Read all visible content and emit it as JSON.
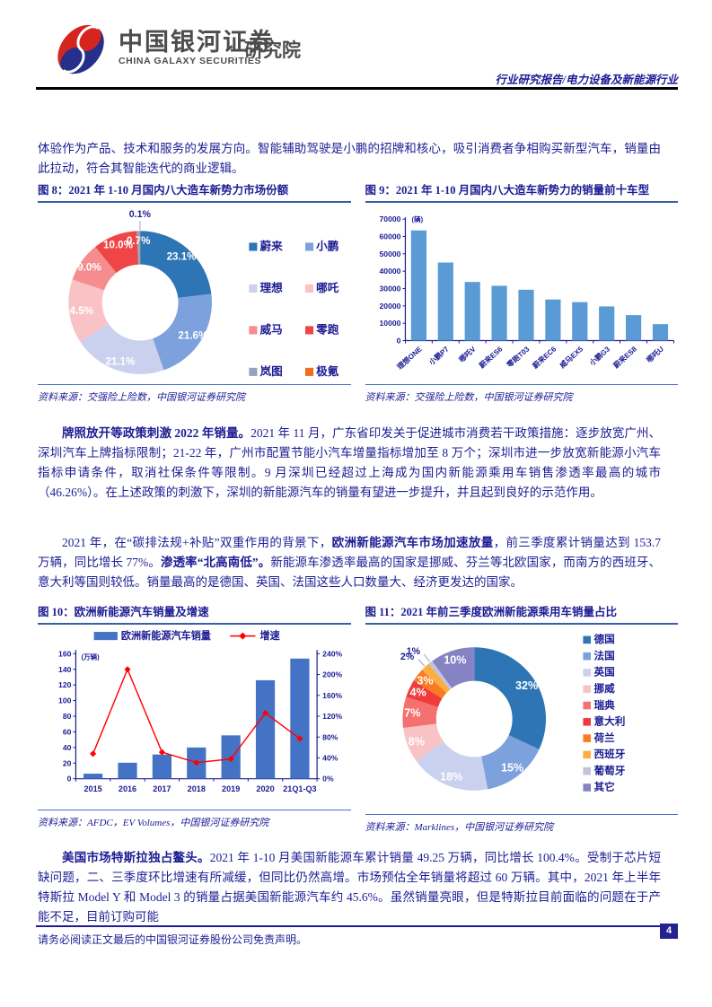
{
  "theme": {
    "navy_text": "#1c1c94",
    "title_underline": "#3b5ea8",
    "source_line": "#4472c4",
    "logo_red": "#d6251d",
    "logo_blue": "#25308c"
  },
  "header": {
    "brand_cn": "中国银河证券",
    "brand_en": "CHINA GALAXY SECURITIES",
    "brand_suffix": "研究院",
    "report_type": "行业研究报告/电力设备及新能源行业"
  },
  "intro_paragraph": "体验作为产品、技术和服务的发展方向。智能辅助驾驶是小鹏的招牌和核心，吸引消费者争相购买新型汽车，销量由此拉动，符合其智能迭代的商业逻辑。",
  "paragraphs": {
    "p2": {
      "segments": [
        {
          "text": "牌照放开等政策刺激 2022 年销量。",
          "bold": true
        },
        {
          "text": "2021 年 11 月，广东省印发关于促进城市消费若干政策措施：逐步放宽广州、深圳汽车上牌指标限制；21-22 年，广州市配置节能小汽车增量指标增加至 8 万个；深圳市进一步放宽新能源小汽车指标申请条件，取消社保条件等限制。9 月深圳已经超过上海成为国内新能源乘用车销售渗透率最高的城市（46.26%）。在上述政策的刺激下，深圳的新能源汽车的销量有望进一步提升，并且起到良好的示范作用。",
          "bold": false
        }
      ]
    },
    "p3": {
      "segments": [
        {
          "text": "2021 年，在“碳排法规+补贴”双重作用的背景下，",
          "bold": false
        },
        {
          "text": "欧洲新能源汽车市场加速放量",
          "bold": true
        },
        {
          "text": "，前三季度累计销量达到 153.7 万辆，同比增长 77%。",
          "bold": false
        },
        {
          "text": "渗透率“北高南低”。",
          "bold": true
        },
        {
          "text": "新能源车渗透率最高的国家是挪威、芬兰等北欧国家，而南方的西班牙、意大利等国则较低。销量最高的是德国、英国、法国这些人口数量大、经济更发达的国家。",
          "bold": false
        }
      ]
    },
    "p4": {
      "segments": [
        {
          "text": "美国市场特斯拉独占鳌头。",
          "bold": true
        },
        {
          "text": "2021 年 1-10 月美国新能源车累计销量 49.25 万辆，同比增长 100.4%。受制于芯片短缺问题，二、三季度环比增速有所减缓，但同比仍然高增。市场预估全年销量将超过 60 万辆。其中，2021 年上半年特斯拉 Model Y 和 Model 3 的销量占据美国新能源汽车约 45.6%。虽然销量亮眼，但是特斯拉目前面临的问题在于产能不足，目前订购可能",
          "bold": false
        }
      ]
    }
  },
  "figures": {
    "fig8": {
      "title": "图 8：2021 年 1-10 月国内八大造车新势力市场份额",
      "source": "资料来源：交强险上险数，中国银河证券研究院"
    },
    "fig9": {
      "title": "图 9：2021 年 1-10 月国内八大造车新势力的销量前十车型",
      "source": "资料来源：交强险上险数，中国银河证券研究院"
    },
    "fig10": {
      "title": "图 10：欧洲新能源汽车销量及增速",
      "source": "资料来源：AFDC，EV Volumes，中国银河证券研究院"
    },
    "fig11": {
      "title": "图 11：2021 年前三季度欧洲新能源乘用车销量占比",
      "source": "资料来源：Marklines，中国银河证券研究院"
    }
  },
  "footer": {
    "disclaimer": "请务必阅读正文最后的中国银河证券股份公司免责声明。",
    "page_number": "4"
  },
  "chart_data": [
    {
      "id": "fig8-donut",
      "type": "pie",
      "title": "2021年1-10月国内八大造车新势力市场份额",
      "labels": [
        "蔚来",
        "小鹏",
        "理想",
        "哪吒",
        "威马",
        "零跑",
        "岚图",
        "极氪"
      ],
      "values": [
        23.1,
        21.6,
        21.1,
        14.5,
        9.0,
        10.0,
        0.7,
        0.1
      ],
      "display_labels": [
        "23.1%",
        "21.6%",
        "21.1%",
        "14.5%",
        "9.0%",
        "10.0%",
        "0.7%",
        "0.1%"
      ],
      "colors": [
        "#2e75b6",
        "#7ca1dc",
        "#cad1ee",
        "#f9c3c5",
        "#f58c8e",
        "#ef4546",
        "#93a2bd",
        "#f26b21"
      ],
      "donut": true,
      "legend_position": "right",
      "legend_cols": 2,
      "label_outside_max": 0.5
    },
    {
      "id": "fig9-bar",
      "type": "bar",
      "title": "2021年1-10月国内八大造车新势力的销量前十车型",
      "categories": [
        "理想ONE",
        "小鹏P7",
        "哪吒V",
        "蔚来ES6",
        "零跑T03",
        "蔚来EC6",
        "威马EX5",
        "小鹏G3",
        "蔚来ES8",
        "哪吒U"
      ],
      "values": [
        63500,
        45000,
        33800,
        31600,
        29300,
        23700,
        22200,
        19700,
        14700,
        9500
      ],
      "unit": "(辆)",
      "ylim": [
        0,
        70000
      ],
      "ystep": 10000,
      "bar_color": "#5b9bd5",
      "grid": false
    },
    {
      "id": "fig10-combo",
      "type": "bar+line",
      "title": "欧洲新能源汽车销量及增速",
      "categories": [
        "2015",
        "2016",
        "2017",
        "2018",
        "2019",
        "2020",
        "21Q1-Q3"
      ],
      "series": [
        {
          "name": "欧洲新能源汽车销量",
          "type": "bar",
          "axis": "left",
          "values": [
            6.5,
            20.5,
            31,
            40,
            55.5,
            126,
            153.7
          ],
          "color": "#4472c4"
        },
        {
          "name": "增速",
          "type": "line",
          "axis": "right",
          "values": [
            48,
            210,
            51,
            31,
            38,
            126,
            77
          ],
          "color": "#ff0000"
        }
      ],
      "left_unit": "(万辆)",
      "left_ylim": [
        0,
        160
      ],
      "left_ystep": 20,
      "right_ylim": [
        0,
        240
      ],
      "right_ystep": 40,
      "legend_position": "top",
      "grid": false
    },
    {
      "id": "fig11-donut",
      "type": "pie",
      "title": "2021年前三季度欧洲新能源乘用车销量占比",
      "labels": [
        "德国",
        "法国",
        "英国",
        "挪威",
        "瑞典",
        "意大利",
        "荷兰",
        "西班牙",
        "葡萄牙",
        "其它"
      ],
      "values": [
        32,
        15,
        18,
        8,
        7,
        4,
        3,
        2,
        1,
        10
      ],
      "display_labels": [
        "32%",
        "15%",
        "18%",
        "8%",
        "7%",
        "4%",
        "3%",
        "2%",
        "1%",
        "10%"
      ],
      "colors": [
        "#2e75b6",
        "#7ca1dc",
        "#cad1ee",
        "#f9c3c5",
        "#f4716f",
        "#ef3b3b",
        "#f97b22",
        "#fbae3d",
        "#c3c2de",
        "#8583c4"
      ],
      "donut": true,
      "legend_position": "right",
      "legend_cols": 1,
      "label_outside_max": 2
    }
  ]
}
